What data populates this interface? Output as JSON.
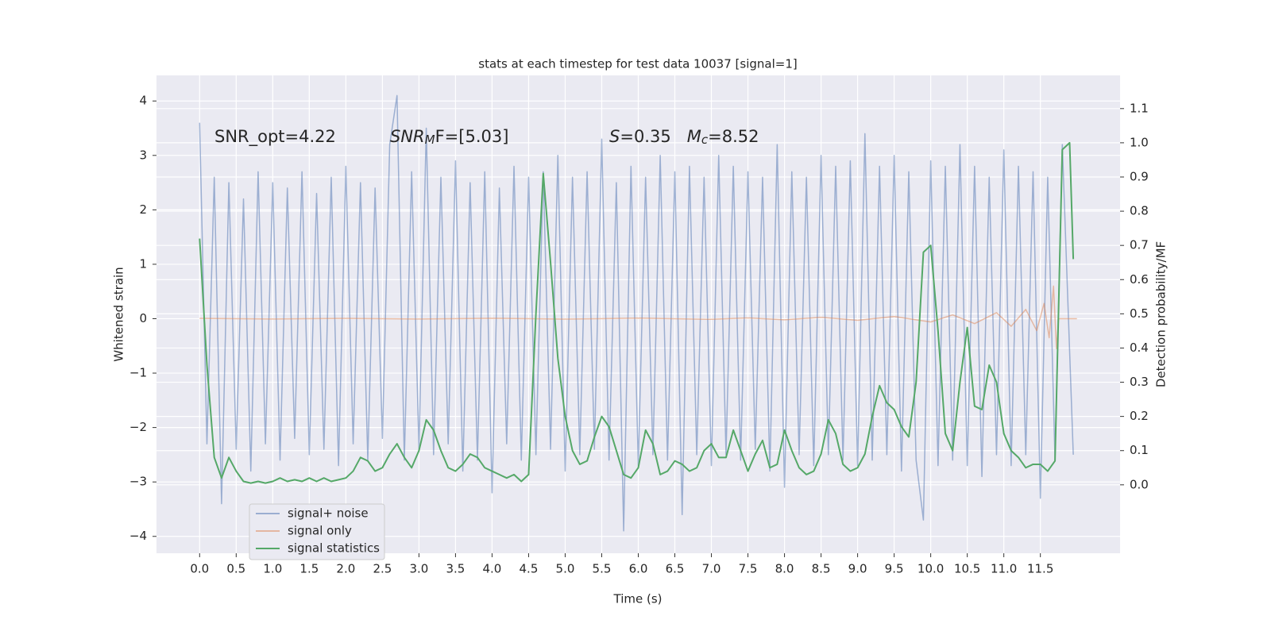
{
  "chart_data": {
    "type": "line",
    "title": "stats at each timestep for test data 10037 [signal=1]",
    "xlabel": "Time (s)",
    "ylabel": "Whitened strain",
    "y2label": "Detection probability/MF",
    "xlim": [
      -0.59,
      12.59
    ],
    "ylim": [
      -4.31,
      4.47
    ],
    "y2lim": [
      -0.2,
      1.197
    ],
    "xticks": [
      {
        "value": 0,
        "label": "0.0"
      },
      0.5,
      {
        "value": 1,
        "label": "1.0"
      },
      1.5,
      {
        "value": 2,
        "label": "2.0"
      },
      2.5,
      {
        "value": 3,
        "label": "3.0"
      },
      3.5,
      {
        "value": 4,
        "label": "4.0"
      },
      4.5,
      {
        "value": 5,
        "label": "5.0"
      },
      5.5,
      {
        "value": 6,
        "label": "6.0"
      },
      6.5,
      {
        "value": 7,
        "label": "7.0"
      },
      7.5,
      {
        "value": 8,
        "label": "8.0"
      },
      8.5,
      {
        "value": 9,
        "label": "9.0"
      },
      9.5,
      {
        "value": 10,
        "label": "10.0"
      },
      10.5,
      {
        "value": 11,
        "label": "11.0"
      },
      11.5
    ],
    "yticks": [
      {
        "value": -4,
        "label": "−4"
      },
      {
        "value": -3,
        "label": "−3"
      },
      {
        "value": -2,
        "label": "−2"
      },
      {
        "value": -1,
        "label": "−1"
      },
      0,
      1,
      2,
      3,
      4
    ],
    "y2ticks": [
      {
        "value": 0,
        "label": "0.0"
      },
      0.1,
      0.2,
      0.3,
      0.4,
      0.5,
      0.6,
      0.7,
      0.8,
      0.9,
      {
        "value": 1,
        "label": "1.0"
      },
      1.1
    ],
    "grid": true,
    "legend": "lower left",
    "annotations": [
      {
        "parts": [
          {
            "text": "SNR_opt=4.22"
          }
        ]
      },
      {
        "parts": [
          {
            "text": "SNR",
            "style": "italic"
          },
          {
            "text": "M",
            "style": "sub"
          },
          {
            "text": "F=[5.03]"
          }
        ]
      },
      {
        "parts": [
          {
            "text": "S",
            "style": "italic"
          },
          {
            "text": "=0.35   "
          },
          {
            "text": "M",
            "style": "italic"
          },
          {
            "text": "c",
            "style": "sub"
          },
          {
            "text": "=8.52"
          }
        ]
      }
    ],
    "series": [
      {
        "name": "signal+ noise",
        "color": "#4c72b0",
        "alpha": 0.5,
        "x": [
          0,
          0.1,
          0.2,
          0.3,
          0.4,
          0.5,
          0.6,
          0.7,
          0.8,
          0.9,
          1,
          1.1,
          1.2,
          1.3,
          1.4,
          1.5,
          1.6,
          1.7,
          1.8,
          1.9,
          2,
          2.1,
          2.2,
          2.3,
          2.4,
          2.5,
          2.6,
          2.7,
          2.8,
          2.9,
          3,
          3.1,
          3.2,
          3.3,
          3.4,
          3.5,
          3.6,
          3.7,
          3.8,
          3.9,
          4,
          4.1,
          4.2,
          4.3,
          4.4,
          4.5,
          4.6,
          4.7,
          4.8,
          4.9,
          5,
          5.1,
          5.2,
          5.3,
          5.4,
          5.5,
          5.6,
          5.7,
          5.8,
          5.9,
          6,
          6.1,
          6.2,
          6.3,
          6.4,
          6.5,
          6.6,
          6.7,
          6.8,
          6.9,
          7,
          7.1,
          7.2,
          7.3,
          7.4,
          7.5,
          7.6,
          7.7,
          7.8,
          7.9,
          8,
          8.1,
          8.2,
          8.3,
          8.4,
          8.5,
          8.6,
          8.7,
          8.8,
          8.9,
          9,
          9.1,
          9.2,
          9.3,
          9.4,
          9.5,
          9.6,
          9.7,
          9.8,
          9.9,
          10,
          10.1,
          10.2,
          10.3,
          10.4,
          10.5,
          10.6,
          10.7,
          10.8,
          10.9,
          11,
          11.1,
          11.2,
          11.3,
          11.4,
          11.5,
          11.6,
          11.7,
          11.8,
          11.95
        ],
        "values": [
          3.6,
          -2.3,
          2.6,
          -3.4,
          2.5,
          -2.4,
          2.2,
          -2.8,
          2.7,
          -2.3,
          2.5,
          -2.6,
          2.4,
          -2.2,
          2.7,
          -2.5,
          2.3,
          -2.4,
          2.6,
          -2.7,
          2.8,
          -2.3,
          2.5,
          -2.6,
          2.4,
          -2.2,
          3.2,
          4.1,
          -2.6,
          2.7,
          -2.4,
          3.5,
          -2.5,
          2.6,
          -2.3,
          2.9,
          -2.8,
          2.5,
          -2.6,
          2.7,
          -3.2,
          2.4,
          -2.3,
          2.8,
          -2.6,
          2.6,
          -2.5,
          2.7,
          -2.4,
          3.0,
          -2.8,
          2.6,
          -2.5,
          2.7,
          -2.4,
          3.3,
          -2.6,
          2.5,
          -3.9,
          2.8,
          -2.7,
          2.6,
          -2.5,
          3.0,
          -2.6,
          2.7,
          -3.6,
          2.8,
          -2.5,
          2.6,
          -2.7,
          3.0,
          -2.5,
          2.8,
          -2.6,
          2.7,
          -2.4,
          2.6,
          -2.8,
          3.2,
          -3.1,
          2.7,
          -2.5,
          2.6,
          -2.7,
          3.0,
          -2.5,
          2.8,
          -2.6,
          2.9,
          -2.7,
          3.4,
          -2.6,
          2.8,
          -2.5,
          3.0,
          -2.8,
          2.7,
          -2.6,
          -3.7,
          2.9,
          -2.7,
          2.8,
          -2.6,
          3.2,
          -2.7,
          2.8,
          -2.9,
          2.6,
          -2.5,
          3.1,
          -2.7,
          2.8,
          -2.5,
          2.7,
          -3.3,
          2.6,
          -2.6,
          3.2,
          -2.5
        ]
      },
      {
        "name": "signal only",
        "color": "#dd8452",
        "alpha": 0.5,
        "x": [
          0,
          1,
          2,
          3,
          4,
          5,
          6,
          7,
          7.5,
          8,
          8.5,
          9,
          9.5,
          10,
          10.3,
          10.6,
          10.9,
          11.1,
          11.3,
          11.45,
          11.55,
          11.62,
          11.68,
          11.72,
          11.75,
          12.0
        ],
        "values": [
          0.005,
          -0.005,
          0.006,
          -0.006,
          0.008,
          -0.008,
          0.01,
          -0.012,
          0.014,
          -0.02,
          0.025,
          -0.03,
          0.04,
          -0.06,
          0.07,
          -0.09,
          0.11,
          -0.14,
          0.17,
          -0.22,
          0.28,
          -0.35,
          0.6,
          -0.55,
          0,
          0
        ]
      },
      {
        "name": "signal statistics",
        "color": "#55a868",
        "alpha": 1,
        "axis": "y2",
        "x": [
          0,
          0.1,
          0.2,
          0.3,
          0.4,
          0.5,
          0.6,
          0.7,
          0.8,
          0.9,
          1,
          1.1,
          1.2,
          1.3,
          1.4,
          1.5,
          1.6,
          1.7,
          1.8,
          1.9,
          2,
          2.1,
          2.2,
          2.3,
          2.4,
          2.5,
          2.6,
          2.7,
          2.8,
          2.9,
          3,
          3.1,
          3.2,
          3.3,
          3.4,
          3.5,
          3.6,
          3.7,
          3.8,
          3.9,
          4,
          4.1,
          4.2,
          4.3,
          4.4,
          4.5,
          4.6,
          4.7,
          4.8,
          4.9,
          5,
          5.1,
          5.2,
          5.3,
          5.4,
          5.5,
          5.6,
          5.7,
          5.8,
          5.9,
          6,
          6.1,
          6.2,
          6.3,
          6.4,
          6.5,
          6.6,
          6.7,
          6.8,
          6.9,
          7,
          7.1,
          7.2,
          7.3,
          7.4,
          7.5,
          7.6,
          7.7,
          7.8,
          7.9,
          8,
          8.1,
          8.2,
          8.3,
          8.4,
          8.5,
          8.6,
          8.7,
          8.8,
          8.9,
          9,
          9.1,
          9.2,
          9.3,
          9.4,
          9.5,
          9.6,
          9.7,
          9.8,
          9.9,
          10,
          10.1,
          10.2,
          10.3,
          10.4,
          10.5,
          10.6,
          10.7,
          10.8,
          10.9,
          11,
          11.1,
          11.2,
          11.3,
          11.4,
          11.5,
          11.6,
          11.7,
          11.8,
          11.9,
          11.95
        ],
        "values": [
          0.72,
          0.35,
          0.08,
          0.02,
          0.08,
          0.04,
          0.01,
          0.005,
          0.01,
          0.005,
          0.01,
          0.02,
          0.01,
          0.015,
          0.01,
          0.02,
          0.01,
          0.02,
          0.01,
          0.015,
          0.02,
          0.04,
          0.08,
          0.07,
          0.04,
          0.05,
          0.09,
          0.12,
          0.08,
          0.05,
          0.1,
          0.19,
          0.16,
          0.1,
          0.05,
          0.04,
          0.06,
          0.09,
          0.08,
          0.05,
          0.04,
          0.03,
          0.02,
          0.03,
          0.01,
          0.03,
          0.5,
          0.91,
          0.65,
          0.37,
          0.2,
          0.1,
          0.06,
          0.07,
          0.14,
          0.2,
          0.17,
          0.1,
          0.03,
          0.02,
          0.05,
          0.16,
          0.12,
          0.03,
          0.04,
          0.07,
          0.06,
          0.04,
          0.05,
          0.1,
          0.12,
          0.08,
          0.08,
          0.16,
          0.1,
          0.04,
          0.09,
          0.13,
          0.05,
          0.06,
          0.16,
          0.1,
          0.05,
          0.03,
          0.04,
          0.09,
          0.19,
          0.15,
          0.06,
          0.04,
          0.05,
          0.09,
          0.2,
          0.29,
          0.24,
          0.22,
          0.17,
          0.14,
          0.3,
          0.68,
          0.7,
          0.45,
          0.15,
          0.1,
          0.3,
          0.46,
          0.23,
          0.22,
          0.35,
          0.3,
          0.15,
          0.1,
          0.08,
          0.05,
          0.06,
          0.06,
          0.04,
          0.07,
          0.98,
          1.0,
          0.66
        ]
      }
    ]
  }
}
